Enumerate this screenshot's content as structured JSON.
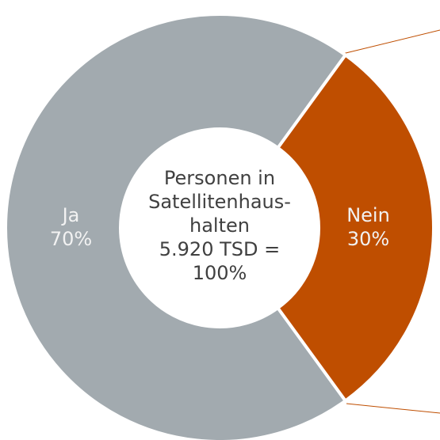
{
  "chart_data": {
    "type": "donut",
    "categories": [
      "Ja",
      "Nein"
    ],
    "values": [
      70,
      30
    ],
    "value_labels": [
      "70%",
      "30%"
    ],
    "colors": [
      "#a2aaaf",
      "#bf4e00"
    ],
    "center_text": [
      "Personen in",
      "Satellitenhaus-",
      "halten",
      "5.920 TSD =",
      "100%"
    ]
  }
}
